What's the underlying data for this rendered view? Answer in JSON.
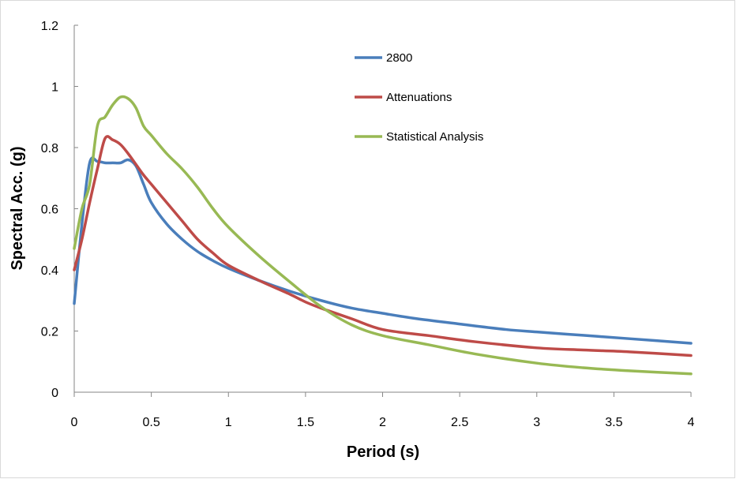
{
  "chart_data": {
    "type": "line",
    "title": "",
    "xlabel": "Period (s)",
    "ylabel": "Spectral Acc. (g)",
    "xlim": [
      0,
      4
    ],
    "ylim": [
      0,
      1.2
    ],
    "x_ticks": [
      0,
      0.5,
      1,
      1.5,
      2,
      2.5,
      3,
      3.5,
      4
    ],
    "x_tick_labels": [
      "0",
      "0.5",
      "1",
      "1.5",
      "2",
      "2.5",
      "3",
      "3.5",
      "4"
    ],
    "y_ticks": [
      0,
      0.2,
      0.4,
      0.6,
      0.8,
      1,
      1.2
    ],
    "y_tick_labels": [
      "0",
      "0.2",
      "0.4",
      "0.6",
      "0.8",
      "1",
      "1.2"
    ],
    "grid": false,
    "legend_position": "top-center",
    "series": [
      {
        "name": "2800",
        "color": "#4a7ebb",
        "x": [
          0,
          0.05,
          0.1,
          0.15,
          0.2,
          0.25,
          0.3,
          0.35,
          0.4,
          0.45,
          0.5,
          0.6,
          0.7,
          0.8,
          0.9,
          1.0,
          1.2,
          1.4,
          1.6,
          1.8,
          2.0,
          2.2,
          2.5,
          2.8,
          3.0,
          3.3,
          3.6,
          4.0
        ],
        "y": [
          0.29,
          0.55,
          0.75,
          0.755,
          0.75,
          0.75,
          0.75,
          0.76,
          0.74,
          0.68,
          0.62,
          0.55,
          0.5,
          0.46,
          0.43,
          0.405,
          0.365,
          0.33,
          0.3,
          0.275,
          0.258,
          0.242,
          0.223,
          0.205,
          0.197,
          0.186,
          0.175,
          0.16
        ]
      },
      {
        "name": "Attenuations",
        "color": "#be4b48",
        "x": [
          0,
          0.05,
          0.1,
          0.15,
          0.2,
          0.25,
          0.3,
          0.35,
          0.4,
          0.45,
          0.5,
          0.6,
          0.7,
          0.8,
          0.9,
          1.0,
          1.2,
          1.4,
          1.5,
          1.6,
          1.8,
          2.0,
          2.3,
          2.6,
          3.0,
          3.3,
          3.6,
          4.0
        ],
        "y": [
          0.4,
          0.5,
          0.62,
          0.73,
          0.83,
          0.825,
          0.81,
          0.78,
          0.745,
          0.71,
          0.68,
          0.62,
          0.56,
          0.5,
          0.455,
          0.415,
          0.365,
          0.32,
          0.295,
          0.275,
          0.24,
          0.205,
          0.185,
          0.165,
          0.145,
          0.138,
          0.132,
          0.12
        ]
      },
      {
        "name": "Statistical Analysis",
        "color": "#98b954",
        "x": [
          0,
          0.05,
          0.1,
          0.15,
          0.2,
          0.25,
          0.3,
          0.35,
          0.4,
          0.45,
          0.5,
          0.6,
          0.7,
          0.8,
          0.9,
          1.0,
          1.2,
          1.4,
          1.6,
          1.8,
          2.0,
          2.3,
          2.6,
          3.0,
          3.3,
          3.6,
          4.0
        ],
        "y": [
          0.47,
          0.6,
          0.68,
          0.87,
          0.9,
          0.94,
          0.965,
          0.96,
          0.93,
          0.87,
          0.84,
          0.78,
          0.73,
          0.67,
          0.6,
          0.54,
          0.445,
          0.36,
          0.28,
          0.22,
          0.185,
          0.155,
          0.125,
          0.095,
          0.08,
          0.07,
          0.06
        ]
      }
    ]
  }
}
